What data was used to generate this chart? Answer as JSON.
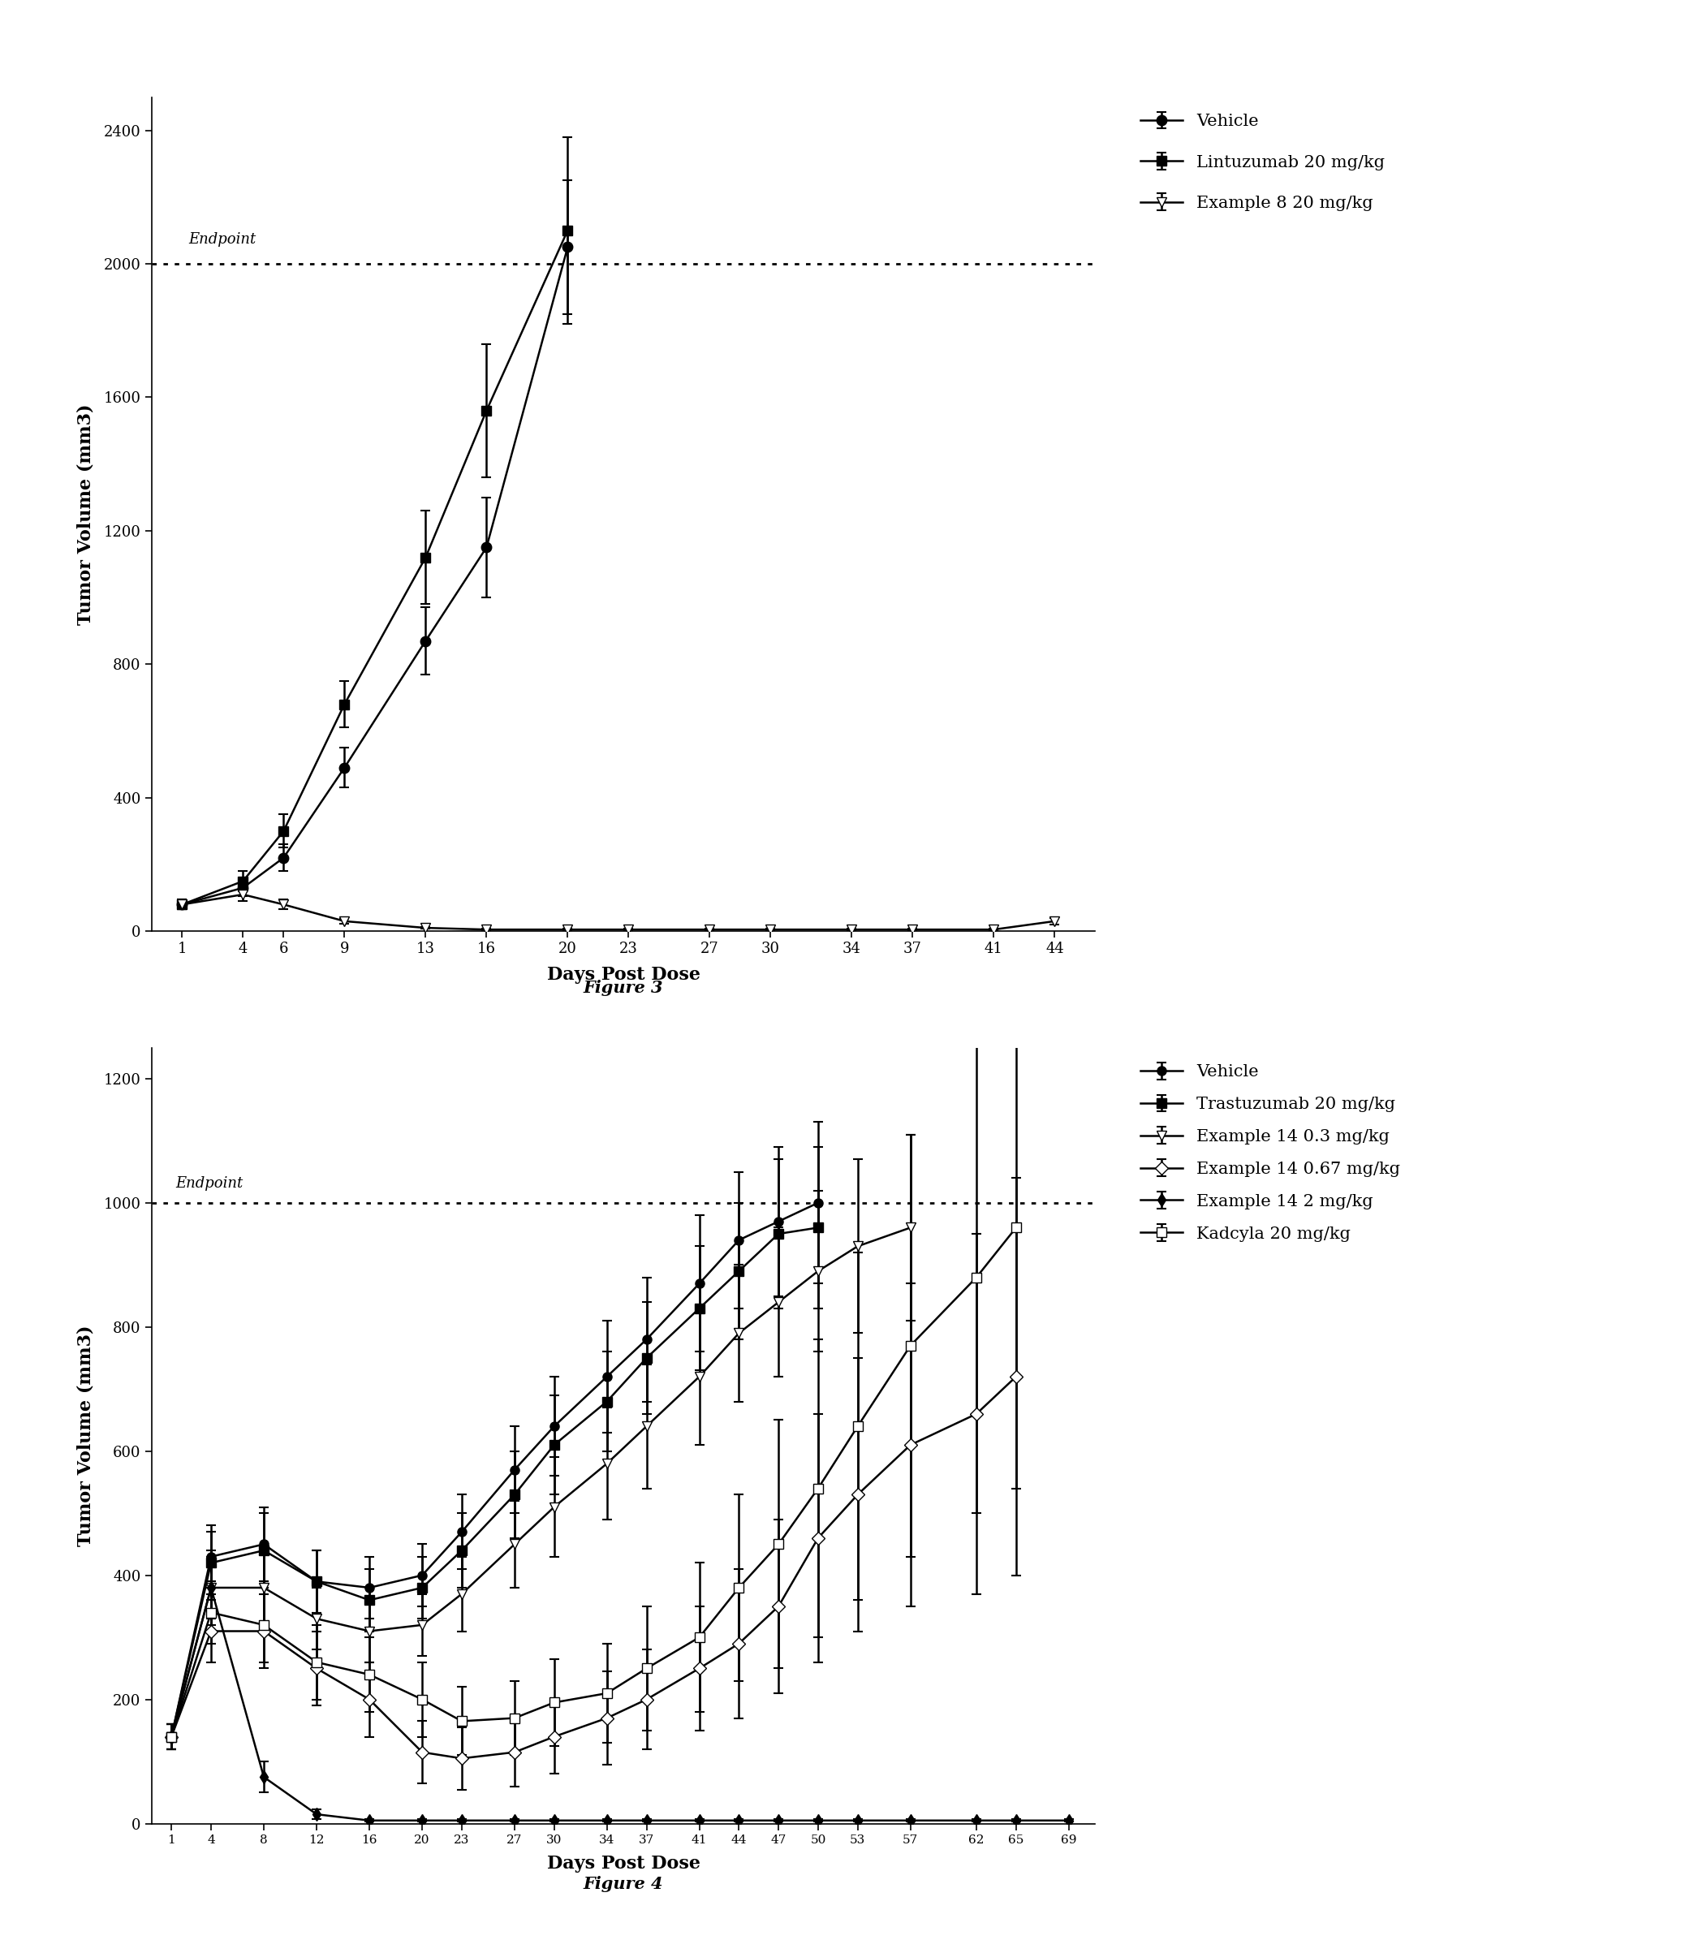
{
  "fig3": {
    "x": [
      1,
      4,
      6,
      9,
      13,
      16,
      20,
      23,
      27,
      30,
      34,
      37,
      41,
      44
    ],
    "vehicle": [
      80,
      130,
      220,
      490,
      870,
      1150,
      2050,
      null,
      null,
      null,
      null,
      null,
      null,
      null
    ],
    "vehicle_err": [
      15,
      25,
      40,
      60,
      100,
      150,
      200,
      null,
      null,
      null,
      null,
      null,
      null,
      null
    ],
    "lintuzumab": [
      80,
      150,
      300,
      680,
      1120,
      1560,
      2100,
      null,
      null,
      null,
      null,
      null,
      null,
      null
    ],
    "lintuzumab_err": [
      15,
      30,
      50,
      70,
      140,
      200,
      280,
      null,
      null,
      null,
      null,
      null,
      null,
      null
    ],
    "example8": [
      80,
      110,
      80,
      30,
      10,
      5,
      5,
      5,
      5,
      5,
      5,
      5,
      5,
      30
    ],
    "example8_err": [
      15,
      20,
      15,
      8,
      3,
      2,
      2,
      2,
      2,
      2,
      2,
      2,
      2,
      10
    ],
    "ylabel": "Tumor Volume (mm3)",
    "xlabel": "Days Post Dose",
    "ylim": [
      0,
      2500
    ],
    "yticks": [
      0,
      400,
      800,
      1200,
      1600,
      2000,
      2400
    ],
    "endpoint": 2000,
    "endpoint_label": "Endpoint",
    "legend": [
      "Vehicle",
      "Lintuzumab 20 mg/kg",
      "Example 8 20 mg/kg"
    ],
    "figure_label": "Figure 3"
  },
  "fig4": {
    "x": [
      1,
      4,
      8,
      12,
      16,
      20,
      23,
      27,
      30,
      34,
      37,
      41,
      44,
      47,
      50,
      53,
      57,
      62,
      65,
      69
    ],
    "vehicle": [
      140,
      430,
      450,
      390,
      380,
      400,
      470,
      570,
      640,
      720,
      780,
      870,
      940,
      970,
      1000,
      null,
      null,
      null,
      null,
      null
    ],
    "vehicle_err": [
      20,
      50,
      60,
      50,
      50,
      50,
      60,
      70,
      80,
      90,
      100,
      110,
      110,
      120,
      130,
      null,
      null,
      null,
      null,
      null
    ],
    "trastuzumab": [
      140,
      420,
      440,
      390,
      360,
      380,
      440,
      530,
      610,
      680,
      750,
      830,
      890,
      950,
      960,
      null,
      null,
      null,
      null,
      null
    ],
    "trastuzumab_err": [
      20,
      50,
      60,
      50,
      50,
      50,
      60,
      70,
      80,
      80,
      90,
      100,
      110,
      120,
      130,
      null,
      null,
      null,
      null,
      null
    ],
    "example14_03": [
      140,
      380,
      380,
      330,
      310,
      320,
      370,
      450,
      510,
      580,
      640,
      720,
      790,
      840,
      890,
      930,
      960,
      null,
      null,
      null
    ],
    "example14_03_err": [
      20,
      50,
      60,
      50,
      50,
      50,
      60,
      70,
      80,
      90,
      100,
      110,
      110,
      120,
      130,
      140,
      150,
      null,
      null,
      null
    ],
    "example14_067": [
      140,
      310,
      310,
      250,
      200,
      115,
      105,
      115,
      140,
      170,
      200,
      250,
      290,
      350,
      460,
      530,
      610,
      660,
      720,
      null
    ],
    "example14_067_err": [
      20,
      50,
      60,
      60,
      60,
      50,
      50,
      55,
      60,
      75,
      80,
      100,
      120,
      140,
      200,
      220,
      260,
      290,
      320,
      null
    ],
    "example14_2": [
      140,
      380,
      75,
      15,
      5,
      5,
      5,
      5,
      5,
      5,
      5,
      5,
      5,
      5,
      5,
      5,
      5,
      5,
      5,
      5
    ],
    "example14_2_err": [
      20,
      60,
      25,
      8,
      2,
      2,
      2,
      2,
      2,
      2,
      2,
      2,
      2,
      2,
      2,
      2,
      2,
      2,
      2,
      2
    ],
    "kadcyla": [
      140,
      340,
      320,
      260,
      240,
      200,
      165,
      170,
      195,
      210,
      250,
      300,
      380,
      450,
      540,
      640,
      770,
      880,
      960,
      null
    ],
    "kadcyla_err": [
      20,
      50,
      60,
      60,
      60,
      60,
      55,
      60,
      70,
      80,
      100,
      120,
      150,
      200,
      240,
      280,
      340,
      380,
      420,
      null
    ],
    "ylabel": "Tumor Volume (mm3)",
    "xlabel": "Days Post Dose",
    "ylim": [
      0,
      1250
    ],
    "yticks": [
      0,
      200,
      400,
      600,
      800,
      1000,
      1200
    ],
    "endpoint": 1000,
    "endpoint_label": "Endpoint",
    "legend": [
      "Vehicle",
      "Trastuzumab 20 mg/kg",
      "Example 14 0.3 mg/kg",
      "Example 14 0.67 mg/kg",
      "Example 14 2 mg/kg",
      "Kadcyla 20 mg/kg"
    ],
    "figure_label": "Figure 4"
  }
}
